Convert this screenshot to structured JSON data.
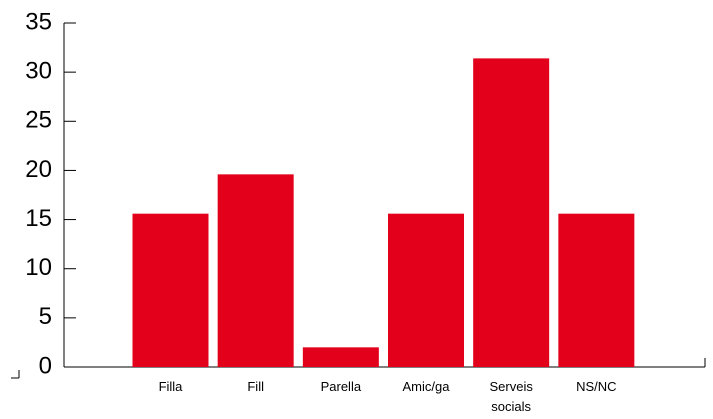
{
  "chart_data": {
    "type": "bar",
    "categories": [
      "Filla",
      "Fill",
      "Parella",
      "Amic/ga",
      "Serveis socials",
      "NS/NC"
    ],
    "category_lines": [
      [
        "Filla"
      ],
      [
        "Fill"
      ],
      [
        "Parella"
      ],
      [
        "Amic/ga"
      ],
      [
        "Serveis",
        "socials"
      ],
      [
        "NS/NC"
      ]
    ],
    "values": [
      15.6,
      19.6,
      2.0,
      15.6,
      31.4,
      15.6
    ],
    "ylim": [
      0,
      35
    ],
    "yticks": [
      0,
      5,
      10,
      15,
      20,
      25,
      30,
      35
    ],
    "title": "",
    "xlabel": "",
    "ylabel": "",
    "grid": false,
    "bar_color": "#e2001a"
  }
}
